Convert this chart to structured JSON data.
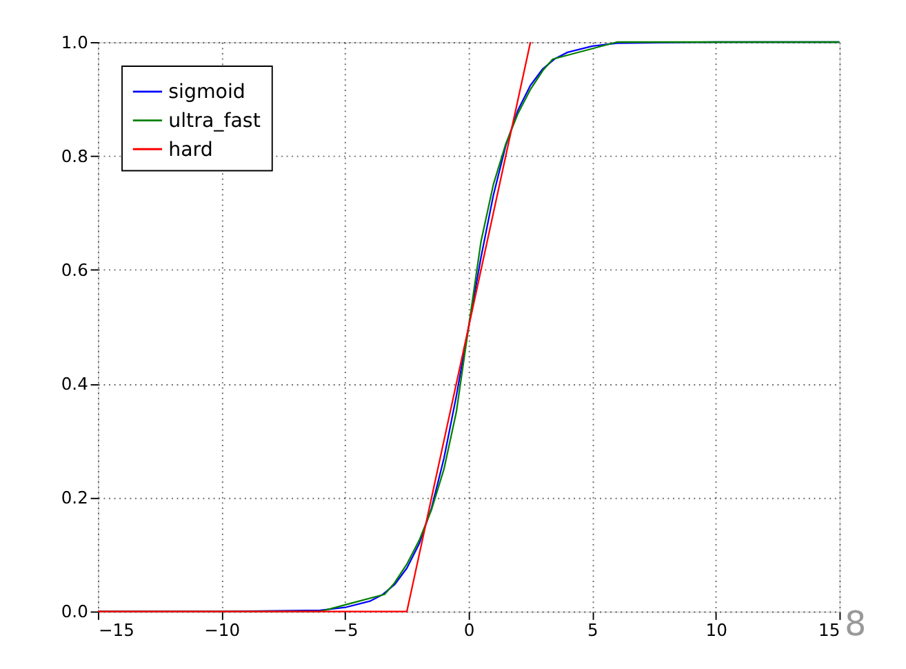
{
  "chart_data": {
    "type": "line",
    "xlim": [
      -15,
      15
    ],
    "ylim": [
      0,
      1
    ],
    "xticks": [
      {
        "value": -15,
        "label": "−15"
      },
      {
        "value": -10,
        "label": "−10"
      },
      {
        "value": -5,
        "label": "−5"
      },
      0,
      5,
      10,
      15
    ],
    "yticks": [
      {
        "value": 0,
        "label": "0.0"
      },
      {
        "value": 0.2,
        "label": "0.2"
      },
      {
        "value": 0.4,
        "label": "0.4"
      },
      {
        "value": 0.6,
        "label": "0.6"
      },
      {
        "value": 0.8,
        "label": "0.8"
      },
      {
        "value": 1,
        "label": "1.0"
      }
    ],
    "grid": true,
    "legend": "top left",
    "line_style": "solid",
    "marker": "none",
    "annotations": [
      "8"
    ],
    "series": [
      {
        "name": "sigmoid",
        "color": "#0000ff",
        "x": [
          -15,
          -10,
          -6,
          -5,
          -4,
          -3.5,
          -3,
          -2.5,
          -2,
          -1.5,
          -1,
          -0.5,
          0,
          0.5,
          1,
          1.5,
          2,
          2.5,
          3,
          3.5,
          4,
          5,
          6,
          10,
          15
        ],
        "values": [
          0,
          0,
          0.002,
          0.007,
          0.018,
          0.029,
          0.047,
          0.076,
          0.119,
          0.182,
          0.269,
          0.378,
          0.5,
          0.622,
          0.731,
          0.818,
          0.881,
          0.924,
          0.953,
          0.971,
          0.982,
          0.993,
          0.998,
          1,
          1
        ]
      },
      {
        "name": "ultra_fast",
        "color": "#008000",
        "x": [
          -15,
          -6,
          -3.4,
          -3,
          -2.5,
          -2,
          -1.5,
          -1,
          -0.5,
          0,
          0.5,
          1,
          1.5,
          2,
          2.5,
          3,
          3.4,
          6,
          15
        ],
        "values": [
          0,
          0,
          0.03,
          0.05,
          0.083,
          0.125,
          0.179,
          0.25,
          0.35,
          0.5,
          0.65,
          0.75,
          0.821,
          0.875,
          0.917,
          0.95,
          0.97,
          1,
          1
        ]
      },
      {
        "name": "hard",
        "color": "#ff0000",
        "x": [
          -15,
          -2.5,
          2.5
        ],
        "values": [
          0,
          0,
          1
        ]
      }
    ]
  }
}
